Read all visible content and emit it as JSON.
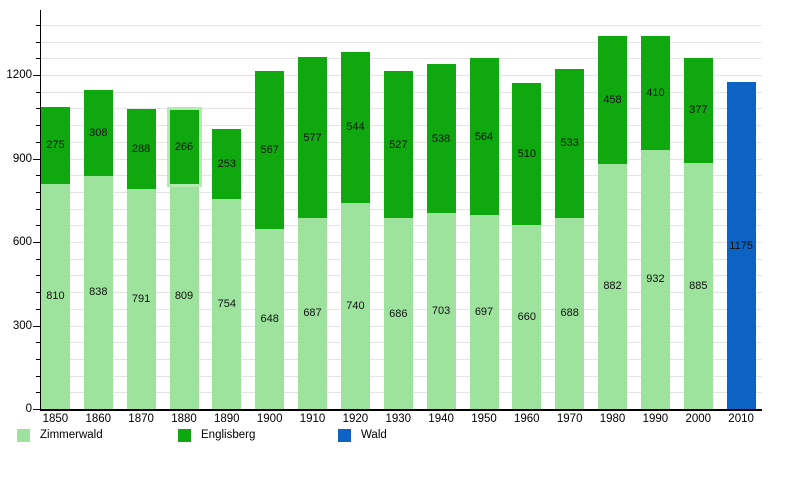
{
  "chart_data": {
    "type": "bar",
    "stacked": true,
    "title": "",
    "xlabel": "",
    "ylabel": "",
    "categories": [
      "1850",
      "1860",
      "1870",
      "1880",
      "1890",
      "1900",
      "1910",
      "1920",
      "1930",
      "1940",
      "1950",
      "1960",
      "1970",
      "1980",
      "1990",
      "2000",
      "2010"
    ],
    "series": [
      {
        "name": "Zimmerwald",
        "color": "#9de29d",
        "values": [
          810,
          838,
          791,
          809,
          754,
          648,
          687,
          740,
          686,
          703,
          697,
          660,
          688,
          882,
          932,
          885,
          null
        ]
      },
      {
        "name": "Englisberg",
        "color": "#0fa80f",
        "values": [
          275,
          308,
          288,
          266,
          253,
          567,
          577,
          544,
          527,
          538,
          564,
          510,
          533,
          458,
          410,
          377,
          null
        ]
      },
      {
        "name": "Wald",
        "color": "#0d63c4",
        "values": [
          null,
          null,
          null,
          null,
          null,
          null,
          null,
          null,
          null,
          null,
          null,
          null,
          null,
          null,
          null,
          null,
          1175
        ]
      }
    ],
    "ylim": [
      0,
      1440
    ],
    "yticks": [
      0,
      300,
      600,
      900,
      1200
    ],
    "minor_grid_step": 60,
    "grid": true,
    "legend_position": "bottom",
    "highlight": {
      "category": "1880",
      "series": "Englisberg"
    }
  },
  "legend": {
    "items": [
      {
        "label": "Zimmerwald",
        "color": "#9de29d"
      },
      {
        "label": "Englisberg",
        "color": "#0fa80f"
      },
      {
        "label": "Wald",
        "color": "#0d63c4"
      }
    ]
  },
  "colors": {
    "background": "#ffffff",
    "gridline": "#e4e4e4",
    "axis": "#000000",
    "value_label": "#111111"
  }
}
